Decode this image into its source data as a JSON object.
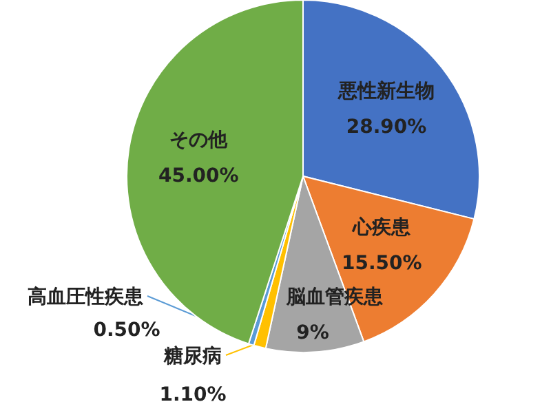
{
  "chart_data": {
    "type": "pie",
    "categories": [
      "悪性新生物",
      "心疾患",
      "脳血管疾患",
      "糖尿病",
      "高血圧性疾患",
      "その他"
    ],
    "values": [
      28.9,
      15.5,
      9,
      1.1,
      0.5,
      45
    ],
    "value_labels": [
      "28.90%",
      "15.50%",
      "9%",
      "1.10%",
      "0.50%",
      "45.00%"
    ],
    "colors": [
      "#4472c4",
      "#ed7d31",
      "#a5a5a5",
      "#ffc000",
      "#5b9bd5",
      "#70ad47"
    ]
  }
}
